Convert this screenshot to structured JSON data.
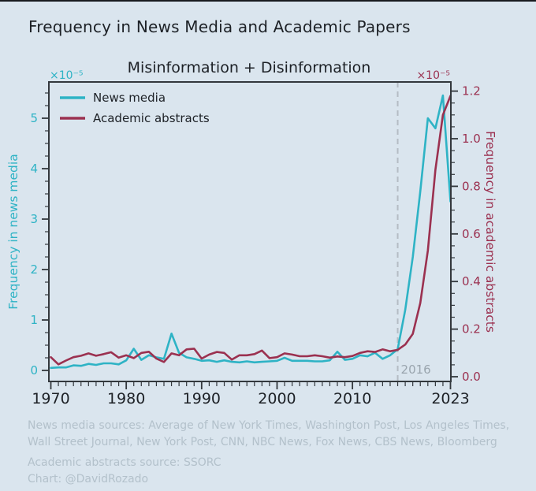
{
  "title": "Frequency in News Media and Academic Papers",
  "chart": {
    "annotation": {
      "label": "2016",
      "year": 2016
    },
    "legend_position": "upper-left",
    "colors": {
      "background": "#dae5ee",
      "text": "#1d2126",
      "axis": "#33383d",
      "news_media": "#2eb3c5",
      "academic": "#9b3150",
      "dashed_line": "#b4bcc4",
      "annotation_text": "#9aa5ae",
      "footer_text": "#b3c1cb"
    }
  },
  "chart_data": {
    "type": "line",
    "title": "Frequency in News Media and Academic Papers",
    "subtitle": "Misinformation + Disinformation",
    "grid": false,
    "xlim": [
      1969.7,
      2023.3
    ],
    "ylim_left": [
      -0.2,
      5.9
    ],
    "ylim_right": [
      -0.02,
      1.26
    ],
    "x_axis": {
      "major_ticks": [
        1970,
        1980,
        1990,
        2000,
        2010,
        2023
      ],
      "minor_tick_every_years": 1
    },
    "left_axis": {
      "label": "Frequency in news media",
      "scale_label": "×10⁻⁵",
      "ticks": [
        0,
        1,
        2,
        3,
        4,
        5
      ]
    },
    "right_axis": {
      "label": "Frequency in academic abstracts",
      "scale_label": "×10⁻⁵",
      "ticks": [
        "0.0",
        "0.2",
        "0.4",
        "0.6",
        "0.8",
        "1.0",
        "1.2"
      ]
    },
    "legend": [
      "News media",
      "Academic abstracts"
    ],
    "x": [
      1970,
      1971,
      1972,
      1973,
      1974,
      1975,
      1976,
      1977,
      1978,
      1979,
      1980,
      1981,
      1982,
      1983,
      1984,
      1985,
      1986,
      1987,
      1988,
      1989,
      1990,
      1991,
      1992,
      1993,
      1994,
      1995,
      1996,
      1997,
      1998,
      1999,
      2000,
      2001,
      2002,
      2003,
      2004,
      2005,
      2006,
      2007,
      2008,
      2009,
      2010,
      2011,
      2012,
      2013,
      2014,
      2015,
      2016,
      2017,
      2018,
      2019,
      2020,
      2021,
      2022,
      2023
    ],
    "series": [
      {
        "name": "News media",
        "axis": "left",
        "units": "×10⁻⁵",
        "color": "#2eb3c5",
        "values": [
          0.05,
          0.06,
          0.06,
          0.1,
          0.09,
          0.13,
          0.11,
          0.14,
          0.14,
          0.12,
          0.2,
          0.43,
          0.21,
          0.3,
          0.26,
          0.23,
          0.73,
          0.35,
          0.26,
          0.23,
          0.19,
          0.2,
          0.17,
          0.2,
          0.17,
          0.16,
          0.18,
          0.16,
          0.17,
          0.18,
          0.19,
          0.25,
          0.19,
          0.19,
          0.19,
          0.18,
          0.18,
          0.2,
          0.37,
          0.21,
          0.23,
          0.3,
          0.28,
          0.35,
          0.23,
          0.3,
          0.42,
          1.2,
          2.25,
          3.55,
          5.0,
          4.8,
          5.45,
          3.35
        ]
      },
      {
        "name": "Academic abstracts",
        "axis": "right",
        "units": "×10⁻⁵",
        "color": "#9b3150",
        "values": [
          0.082,
          0.052,
          0.068,
          0.082,
          0.088,
          0.098,
          0.088,
          0.095,
          0.103,
          0.08,
          0.09,
          0.078,
          0.1,
          0.105,
          0.076,
          0.062,
          0.098,
          0.09,
          0.115,
          0.118,
          0.076,
          0.093,
          0.104,
          0.1,
          0.072,
          0.09,
          0.09,
          0.095,
          0.11,
          0.078,
          0.082,
          0.098,
          0.093,
          0.086,
          0.086,
          0.09,
          0.086,
          0.08,
          0.085,
          0.082,
          0.087,
          0.1,
          0.107,
          0.104,
          0.115,
          0.107,
          0.113,
          0.135,
          0.18,
          0.31,
          0.53,
          0.87,
          1.1,
          1.18
        ]
      }
    ]
  },
  "footer": {
    "lines": [
      "News media sources: Average of New York Times, Washington Post, Los Angeles Times,",
      "Wall Street Journal, New York Post, CNN, NBC News, Fox News, CBS News, Bloomberg",
      "Academic abstracts source: SSORC",
      "Chart: @DavidRozado"
    ]
  }
}
